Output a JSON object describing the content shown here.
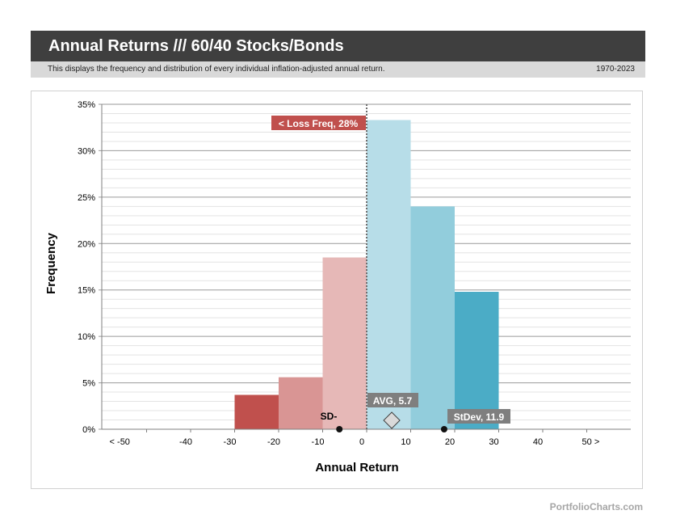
{
  "header": {
    "title": "Annual Returns /// 60/40 Stocks/Bonds",
    "description": "This displays the frequency and distribution of every individual inflation-adjusted annual return.",
    "date_range": "1970-2023"
  },
  "footer": {
    "brand": "PortfolioCharts.com"
  },
  "chart_data": {
    "type": "bar",
    "xlabel": "Annual Return",
    "ylabel": "Frequency",
    "x_ticks": [
      "< -50",
      "-40",
      "-30",
      "-20",
      "-10",
      "0",
      "10",
      "20",
      "30",
      "40",
      "50 >"
    ],
    "y_ticks": [
      "0%",
      "5%",
      "10%",
      "15%",
      "20%",
      "25%",
      "30%",
      "35%"
    ],
    "ylim": [
      0,
      35
    ],
    "bins": [
      {
        "from": -30,
        "to": -20,
        "value": 3.7,
        "color": "#c0504d"
      },
      {
        "from": -20,
        "to": -10,
        "value": 5.6,
        "color": "#d99594"
      },
      {
        "from": -10,
        "to": 0,
        "value": 18.5,
        "color": "#e6b8b7"
      },
      {
        "from": 0,
        "to": 10,
        "value": 33.3,
        "color": "#b7dde8"
      },
      {
        "from": 10,
        "to": 20,
        "value": 24.0,
        "color": "#92cddc"
      },
      {
        "from": 20,
        "to": 30,
        "value": 14.8,
        "color": "#4bacc6"
      }
    ],
    "annotations": {
      "loss_freq": {
        "label": "< Loss  Freq, 28%",
        "color": "#c0504d"
      },
      "avg": {
        "label": "AVG, 5.7",
        "value": 5.7
      },
      "stdev_plus": {
        "label": "StDev, 11.9",
        "value": 17.6
      },
      "stdev_minus": {
        "label": "SD-",
        "value": -6.2
      }
    }
  }
}
